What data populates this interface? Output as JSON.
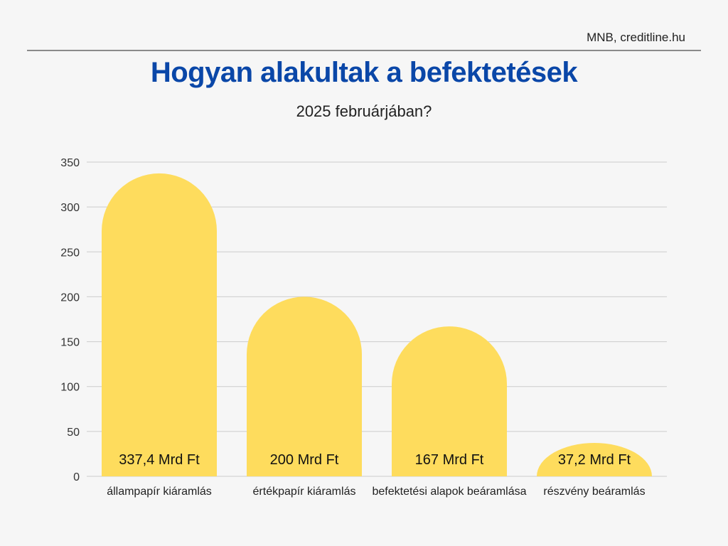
{
  "header": {
    "source": "MNB, creditline.hu",
    "title": "Hogyan alakultak a befektetések",
    "subtitle": "2025 februárjában?"
  },
  "colors": {
    "title": "#0a47a8",
    "bar": "#fedc5d",
    "grid": "#cccccc",
    "background": "#f6f6f6"
  },
  "chart_data": {
    "type": "bar",
    "categories": [
      "állampapír kiáramlás",
      "értékpapír kiáramlás",
      "befektetési alapok beáramlása",
      "részvény beáramlás"
    ],
    "values": [
      337.4,
      200,
      167,
      37.2
    ],
    "data_labels": [
      "337,4 Mrd Ft",
      "200 Mrd Ft",
      "167 Mrd Ft",
      "37,2 Mrd Ft"
    ],
    "title": "Hogyan alakultak a befektetések",
    "subtitle": "2025 februárjában?",
    "xlabel": "",
    "ylabel": "",
    "ylim": [
      0,
      350
    ],
    "yticks": [
      0,
      50,
      100,
      150,
      200,
      250,
      300,
      350
    ],
    "grid": true,
    "legend": "none"
  }
}
